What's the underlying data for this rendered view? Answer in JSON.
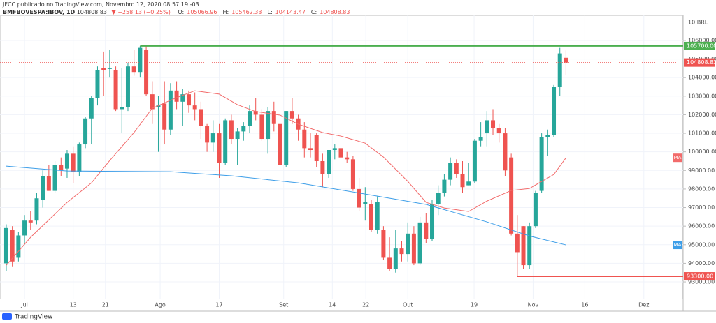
{
  "header": {
    "byline": "JFCC publicado no TradingView.com, Novembro 12, 2020 08:57:19 -03",
    "symbol": "BMFBOVESPA:IBOV, 1D",
    "last": "104808.83",
    "change": "−258.13 (−0.25%)",
    "quote": [
      {
        "label": "O:",
        "value": "105066.96"
      },
      {
        "label": "H:",
        "value": "105462.33"
      },
      {
        "label": "L:",
        "value": "104143.47"
      },
      {
        "label": "C:",
        "value": "104808.83"
      }
    ],
    "currency": "10 BRL",
    "brand": "TradingView"
  },
  "chart_data": {
    "type": "candlestick",
    "up_color": "#26a69a",
    "down_color": "#ef5350",
    "open": [
      94000,
      95800,
      94300,
      95500,
      96300,
      96300,
      97400,
      98700,
      97900,
      99300,
      99100,
      99900,
      98900,
      100400,
      101800,
      102900,
      104500,
      104500,
      104400,
      102300,
      102400,
      104600,
      104300,
      105500,
      103100,
      102400,
      102600,
      101200,
      103300,
      102700,
      103100,
      102500,
      102300,
      101400,
      100500,
      101000,
      99400,
      101700,
      100700,
      101100,
      101400,
      102200,
      102000,
      100700,
      102200,
      101500,
      99300,
      102200,
      101800,
      101200,
      100200,
      100900,
      99500,
      98800,
      100100,
      100200,
      99700,
      99600,
      98000,
      97200,
      97200,
      95800,
      95800,
      94300,
      93700,
      94800,
      94500,
      95600,
      94000,
      96200,
      95300,
      97200,
      97800,
      98500,
      99400,
      98800,
      98200,
      98400,
      100600,
      101000,
      101700,
      101300,
      101000,
      99700,
      95600,
      96000,
      93900,
      96000,
      97900,
      100800,
      100900,
      103500,
      105066.96
    ],
    "high": [
      96100,
      96000,
      95700,
      96600,
      96800,
      97800,
      99000,
      99300,
      99500,
      99700,
      100100,
      100300,
      100500,
      101900,
      103000,
      104600,
      105400,
      105500,
      104600,
      104500,
      104800,
      105500,
      105700,
      105700,
      103800,
      103000,
      103800,
      103700,
      103800,
      103400,
      103300,
      103200,
      102700,
      101500,
      101700,
      101500,
      101800,
      102000,
      101300,
      101600,
      102500,
      102900,
      102300,
      102400,
      102700,
      102300,
      102200,
      102900,
      102000,
      101600,
      101000,
      101000,
      99900,
      100100,
      100400,
      100500,
      100000,
      99800,
      98600,
      98100,
      97400,
      97600,
      96000,
      95400,
      95800,
      95200,
      96200,
      96000,
      96500,
      96700,
      97400,
      98200,
      98800,
      99700,
      99600,
      99500,
      99400,
      100700,
      101600,
      102200,
      102300,
      101500,
      101300,
      99900,
      96600,
      96000,
      96200,
      97900,
      101000,
      101200,
      103600,
      105600,
      105462.33
    ],
    "low": [
      93600,
      93800,
      94100,
      95000,
      95800,
      96100,
      97000,
      97900,
      97800,
      98700,
      98600,
      98300,
      98700,
      100200,
      100400,
      102500,
      103000,
      104000,
      102200,
      101000,
      102200,
      104100,
      104000,
      103000,
      101500,
      100000,
      100400,
      100900,
      102300,
      101400,
      102100,
      101700,
      100700,
      100000,
      100000,
      98600,
      99300,
      100400,
      99300,
      100600,
      101000,
      101700,
      100600,
      99900,
      101100,
      99000,
      99200,
      101500,
      100600,
      99700,
      99700,
      99200,
      98100,
      98600,
      99600,
      99500,
      99400,
      97900,
      96800,
      96300,
      95700,
      95600,
      94200,
      93600,
      93500,
      94100,
      94100,
      93900,
      93900,
      95100,
      95200,
      96600,
      97600,
      98200,
      98600,
      97800,
      98200,
      98300,
      100300,
      100300,
      100900,
      100500,
      98700,
      95500,
      93300,
      93700,
      93700,
      95900,
      97800,
      99800,
      100800,
      103000,
      104143.47
    ],
    "close": [
      95900,
      94100,
      95500,
      96300,
      96200,
      97500,
      98700,
      97900,
      99300,
      99000,
      99900,
      98900,
      100400,
      101800,
      102900,
      104400,
      104400,
      104500,
      102300,
      102400,
      104600,
      104300,
      105600,
      103100,
      102300,
      102500,
      101200,
      103300,
      102700,
      103100,
      102500,
      102300,
      101400,
      100500,
      101000,
      99400,
      101700,
      100700,
      101100,
      101400,
      102200,
      102000,
      100700,
      102200,
      101500,
      99300,
      102200,
      101800,
      101200,
      100200,
      100100,
      99500,
      98800,
      100100,
      100200,
      99700,
      99600,
      98000,
      97000,
      97300,
      95800,
      97300,
      94300,
      93700,
      94800,
      94500,
      95600,
      94000,
      96200,
      95300,
      97200,
      97800,
      98500,
      99400,
      98800,
      98100,
      98400,
      100600,
      100800,
      101700,
      101300,
      101000,
      99000,
      95600,
      94600,
      93900,
      96000,
      97800,
      100800,
      100900,
      103500,
      105300,
      104808.83
    ],
    "series": [
      {
        "name": "MA",
        "color": "#f26b6b",
        "x": [
          0,
          4,
          7,
          10,
          14,
          17,
          21,
          24,
          28,
          31,
          35,
          38,
          41,
          45,
          48,
          52,
          55,
          59,
          62,
          66,
          69,
          72,
          76,
          79,
          83,
          86,
          90,
          92
        ],
        "values": [
          93890,
          95400,
          96340,
          97280,
          98330,
          99530,
          101040,
          102350,
          102920,
          103290,
          103110,
          102540,
          102170,
          101980,
          101490,
          101040,
          100850,
          100470,
          99720,
          98410,
          97280,
          96980,
          96790,
          97350,
          97920,
          98030,
          98780,
          99680
        ]
      },
      {
        "name": "MA",
        "color": "#3d9ee8",
        "x": [
          0,
          10,
          27,
          37,
          48,
          59,
          69,
          79,
          86,
          92
        ],
        "values": [
          99230,
          98970,
          98930,
          98710,
          98330,
          97730,
          97170,
          96230,
          95470,
          94990
        ]
      }
    ],
    "levels": [
      {
        "value": 105700,
        "label": "105700.00",
        "color": "#4caf50",
        "start": 22
      },
      {
        "value": 93300,
        "label": "93300.00",
        "color": "#ef5350",
        "start": 84
      }
    ],
    "last_price": {
      "value": 104808.83,
      "label": "104808.83",
      "color": "#ef5350"
    },
    "ylim": [
      92100,
      107350
    ],
    "yticks": [
      {
        "value": 93000,
        "label": "93000.00"
      },
      {
        "value": 94000,
        "label": "94000.00"
      },
      {
        "value": 95000,
        "label": "95000.00"
      },
      {
        "value": 96000,
        "label": "96000.00"
      },
      {
        "value": 97000,
        "label": "97000.00"
      },
      {
        "value": 98000,
        "label": "98000.00"
      },
      {
        "value": 99000,
        "label": "99000.00"
      },
      {
        "value": 100000,
        "label": "100000.00"
      },
      {
        "value": 101000,
        "label": "101000.00"
      },
      {
        "value": 102000,
        "label": "102000.00"
      },
      {
        "value": 103000,
        "label": "103000.00"
      },
      {
        "value": 104000,
        "label": "104000.00"
      },
      {
        "value": 105000,
        "label": "105000.00"
      },
      {
        "value": 106000,
        "label": "106000.00"
      }
    ],
    "xlim": [
      -1.03,
      111.26
    ],
    "xticks": [
      {
        "value": 3,
        "label": "Jul"
      },
      {
        "value": 11,
        "label": "13"
      },
      {
        "value": 16.3,
        "label": "21"
      },
      {
        "value": 25.3,
        "label": "Ago"
      },
      {
        "value": 35,
        "label": "17"
      },
      {
        "value": 45.6,
        "label": "Set"
      },
      {
        "value": 53.6,
        "label": "14"
      },
      {
        "value": 59.1,
        "label": "22"
      },
      {
        "value": 66,
        "label": "Out"
      },
      {
        "value": 76.9,
        "label": "19"
      },
      {
        "value": 86.6,
        "label": "Nov"
      },
      {
        "value": 95.1,
        "label": "16"
      },
      {
        "value": 104.8,
        "label": "Dez"
      }
    ],
    "grid": true
  }
}
